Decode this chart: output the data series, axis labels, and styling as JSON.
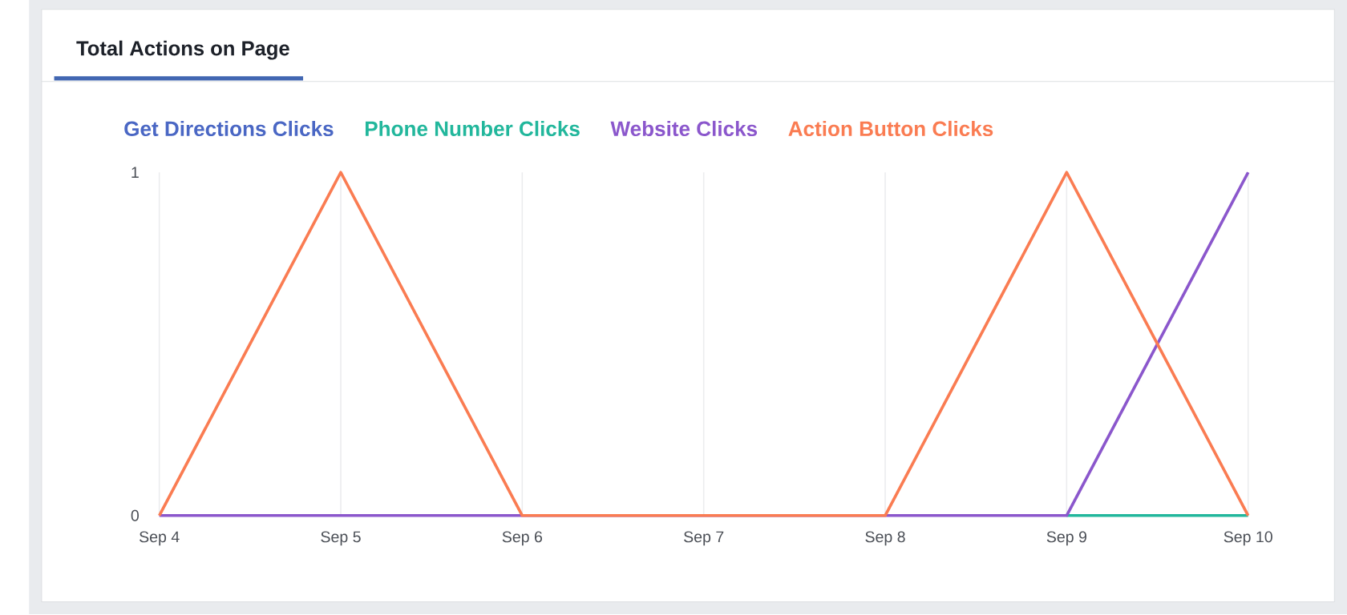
{
  "chart_data": {
    "type": "line",
    "title": "Total Actions on Page",
    "categories": [
      "Sep 4",
      "Sep 5",
      "Sep 6",
      "Sep 7",
      "Sep 8",
      "Sep 9",
      "Sep 10"
    ],
    "series": [
      {
        "name": "Get Directions Clicks",
        "color": "#4a67c4",
        "values": [
          null,
          null,
          null,
          null,
          null,
          null,
          null
        ]
      },
      {
        "name": "Phone Number Clicks",
        "color": "#22b79c",
        "values": [
          null,
          null,
          null,
          null,
          null,
          0,
          0
        ]
      },
      {
        "name": "Website Clicks",
        "color": "#8b57cc",
        "values": [
          0,
          0,
          0,
          0,
          0,
          0,
          1
        ]
      },
      {
        "name": "Action Button Clicks",
        "color": "#fa7c52",
        "values": [
          0,
          1,
          0,
          0,
          0,
          1,
          0
        ]
      }
    ],
    "ylim": [
      0,
      1
    ],
    "yticks": [
      0,
      1
    ],
    "grid": "x",
    "legend": "top left"
  }
}
